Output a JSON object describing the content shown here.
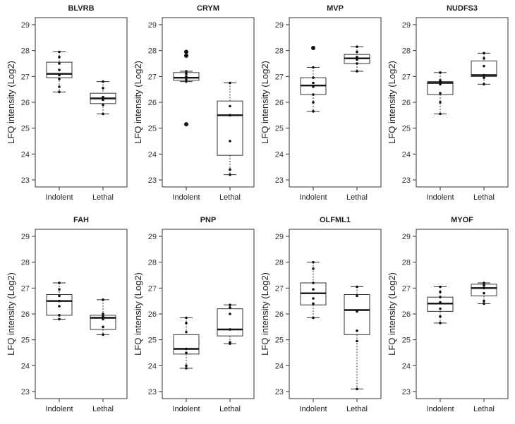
{
  "chart_data": [
    {
      "type": "box",
      "title": "BLVRB",
      "ylabel": "LFQ intensity (Log2)",
      "ylim": [
        23,
        29
      ],
      "yticks": [
        23,
        24,
        25,
        26,
        27,
        28,
        29
      ],
      "categories": [
        "Indolent",
        "Lethal"
      ],
      "boxes": [
        {
          "min": 26.4,
          "q1": 26.95,
          "median": 27.1,
          "q3": 27.55,
          "max": 27.95,
          "points": [
            26.4,
            26.6,
            26.9,
            27.05,
            27.25,
            27.5,
            27.75,
            27.95
          ],
          "outliers": []
        },
        {
          "min": 25.55,
          "q1": 25.95,
          "median": 26.15,
          "q3": 26.35,
          "max": 26.8,
          "points": [
            25.55,
            25.9,
            26.1,
            26.2,
            26.55,
            26.8
          ],
          "outliers": []
        }
      ]
    },
    {
      "type": "box",
      "title": "CRYM",
      "ylabel": "LFQ intensity (Log2)",
      "ylim": [
        23,
        29
      ],
      "yticks": [
        23,
        24,
        25,
        26,
        27,
        28,
        29
      ],
      "categories": [
        "Indolent",
        "Lethal"
      ],
      "boxes": [
        {
          "min": 26.8,
          "q1": 26.85,
          "median": 26.95,
          "q3": 27.15,
          "max": 27.2,
          "points": [
            26.8,
            26.9,
            27.0,
            27.1,
            27.2
          ],
          "outliers": [
            25.15,
            27.8,
            27.95
          ]
        },
        {
          "min": 23.2,
          "q1": 23.95,
          "median": 25.5,
          "q3": 26.05,
          "max": 26.75,
          "points": [
            23.2,
            23.4,
            24.5,
            25.5,
            25.85,
            26.75
          ],
          "outliers": []
        }
      ]
    },
    {
      "type": "box",
      "title": "MVP",
      "ylabel": "LFQ intensity (Log2)",
      "ylim": [
        23,
        29
      ],
      "yticks": [
        23,
        24,
        25,
        26,
        27,
        28,
        29
      ],
      "categories": [
        "Indolent",
        "Lethal"
      ],
      "boxes": [
        {
          "min": 25.65,
          "q1": 26.3,
          "median": 26.65,
          "q3": 26.95,
          "max": 27.35,
          "points": [
            25.65,
            26.0,
            26.3,
            26.6,
            26.75,
            26.95,
            27.35
          ],
          "outliers": [
            28.1
          ]
        },
        {
          "min": 27.2,
          "q1": 27.5,
          "median": 27.7,
          "q3": 27.85,
          "max": 28.15,
          "points": [
            27.2,
            27.5,
            27.65,
            27.75,
            27.95,
            28.15
          ],
          "outliers": []
        }
      ]
    },
    {
      "type": "box",
      "title": "NUDFS3",
      "ylabel": "LFQ intensity (Log2)",
      "ylim": [
        23,
        29
      ],
      "yticks": [
        23,
        24,
        25,
        26,
        27,
        28,
        29
      ],
      "categories": [
        "Indolent",
        "Lethal"
      ],
      "boxes": [
        {
          "min": 25.55,
          "q1": 26.3,
          "median": 26.75,
          "q3": 26.8,
          "max": 27.15,
          "points": [
            25.55,
            26.0,
            26.35,
            26.7,
            26.8,
            26.85,
            27.15
          ],
          "outliers": []
        },
        {
          "min": 26.7,
          "q1": 27.0,
          "median": 27.05,
          "q3": 27.6,
          "max": 27.9,
          "points": [
            26.7,
            26.95,
            27.05,
            27.4,
            27.7,
            27.9
          ],
          "outliers": []
        }
      ]
    },
    {
      "type": "box",
      "title": "FAH",
      "ylabel": "LFQ intensity (Log2)",
      "ylim": [
        23,
        29
      ],
      "yticks": [
        23,
        24,
        25,
        26,
        27,
        28,
        29
      ],
      "categories": [
        "Indolent",
        "Lethal"
      ],
      "boxes": [
        {
          "min": 25.8,
          "q1": 25.95,
          "median": 26.5,
          "q3": 26.75,
          "max": 27.2,
          "points": [
            25.8,
            25.95,
            26.3,
            26.5,
            26.7,
            26.95,
            27.2
          ],
          "outliers": []
        },
        {
          "min": 25.2,
          "q1": 25.4,
          "median": 25.85,
          "q3": 25.95,
          "max": 26.55,
          "points": [
            25.2,
            25.5,
            25.8,
            25.9,
            26.0,
            26.55
          ],
          "outliers": []
        }
      ]
    },
    {
      "type": "box",
      "title": "PNP",
      "ylabel": "LFQ intensity (Log2)",
      "ylim": [
        23,
        29
      ],
      "yticks": [
        23,
        24,
        25,
        26,
        27,
        28,
        29
      ],
      "categories": [
        "Indolent",
        "Lethal"
      ],
      "boxes": [
        {
          "min": 23.9,
          "q1": 24.45,
          "median": 24.65,
          "q3": 25.2,
          "max": 25.85,
          "points": [
            23.9,
            24.0,
            24.5,
            24.65,
            25.3,
            25.65,
            25.85
          ],
          "outliers": []
        },
        {
          "min": 24.85,
          "q1": 25.15,
          "median": 25.4,
          "q3": 26.2,
          "max": 26.35,
          "points": [
            24.85,
            24.9,
            25.4,
            26.0,
            26.25,
            26.35
          ],
          "outliers": []
        }
      ]
    },
    {
      "type": "box",
      "title": "OLFML1",
      "ylabel": "LFQ intensity (Log2)",
      "ylim": [
        23,
        29
      ],
      "yticks": [
        23,
        24,
        25,
        26,
        27,
        28,
        29
      ],
      "categories": [
        "Indolent",
        "Lethal"
      ],
      "boxes": [
        {
          "min": 25.85,
          "q1": 26.35,
          "median": 26.8,
          "q3": 27.2,
          "max": 28.0,
          "points": [
            25.85,
            26.4,
            26.6,
            26.95,
            27.2,
            27.75,
            28.0
          ],
          "outliers": []
        },
        {
          "min": 23.1,
          "q1": 25.2,
          "median": 26.15,
          "q3": 26.75,
          "max": 27.05,
          "points": [
            23.1,
            24.95,
            25.35,
            26.1,
            26.7,
            27.05
          ],
          "outliers": []
        }
      ]
    },
    {
      "type": "box",
      "title": "MYOF",
      "ylabel": "LFQ intensity (Log2)",
      "ylim": [
        23,
        29
      ],
      "yticks": [
        23,
        24,
        25,
        26,
        27,
        28,
        29
      ],
      "categories": [
        "Indolent",
        "Lethal"
      ],
      "boxes": [
        {
          "min": 25.65,
          "q1": 26.1,
          "median": 26.4,
          "q3": 26.65,
          "max": 27.05,
          "points": [
            25.65,
            25.9,
            26.2,
            26.45,
            26.65,
            26.85,
            27.05
          ],
          "outliers": []
        },
        {
          "min": 26.4,
          "q1": 26.7,
          "median": 27.0,
          "q3": 27.15,
          "max": 27.2,
          "points": [
            26.4,
            26.5,
            26.8,
            27.0,
            27.1,
            27.2
          ],
          "outliers": []
        }
      ]
    }
  ]
}
